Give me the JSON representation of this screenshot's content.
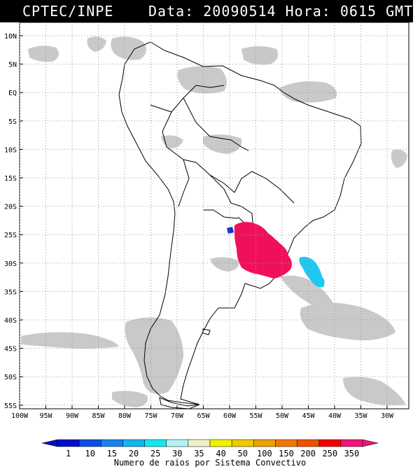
{
  "header": {
    "source": "CPTEC/INPE",
    "datetime": "Data: 20090514 Hora: 0615 GMT"
  },
  "map": {
    "lat_labels": [
      "10N",
      "5N",
      "EQ",
      "5S",
      "10S",
      "15S",
      "20S",
      "25S",
      "30S",
      "35S",
      "40S",
      "45S",
      "50S",
      "55S"
    ],
    "lon_labels": [
      "100W",
      "95W",
      "90W",
      "85W",
      "80W",
      "75W",
      "70W",
      "65W",
      "60W",
      "55W",
      "50W",
      "45W",
      "40W",
      "35W",
      "30W"
    ],
    "colors": {
      "ocean": "#ffffff",
      "cloud": "#c8c8c8",
      "coast": "#000000",
      "storm_high": "#f0105a",
      "storm_low": "#1ec8f0",
      "storm_small": "#1030c8"
    }
  },
  "colorbar": {
    "labels": [
      "1",
      "10",
      "15",
      "20",
      "25",
      "30",
      "35",
      "40",
      "50",
      "100",
      "150",
      "200",
      "250",
      "350"
    ],
    "colors": [
      "#0010c8",
      "#0a50e6",
      "#1482f0",
      "#14b4f0",
      "#14e6f0",
      "#b4f0f0",
      "#f0f0c8",
      "#f0f000",
      "#f0c800",
      "#f0a000",
      "#f07800",
      "#f05000",
      "#f00000",
      "#f01478"
    ],
    "title": "Numero de raios por Sistema Convectivo"
  }
}
